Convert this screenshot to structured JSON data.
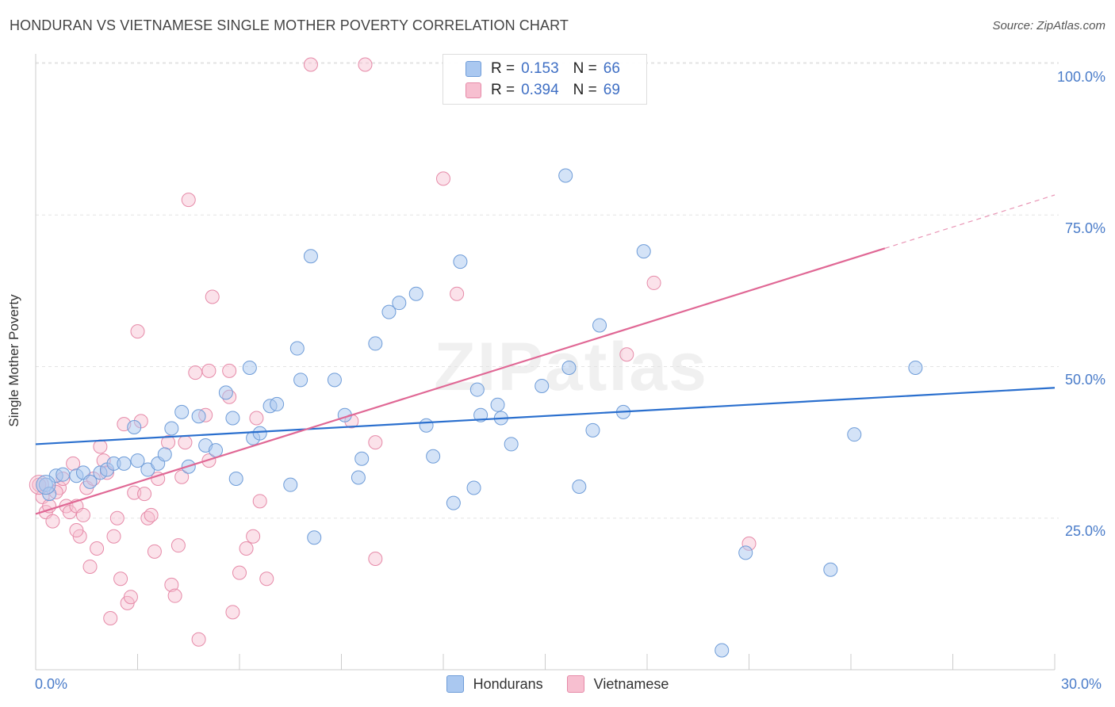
{
  "title": "HONDURAN VS VIETNAMESE SINGLE MOTHER POVERTY CORRELATION CHART",
  "source": "Source: ZipAtlas.com",
  "watermark": "ZIPatlas",
  "colors": {
    "hondurans_fill": "#aac8f0",
    "hondurans_stroke": "#6e9cd8",
    "hondurans_line": "#2a6fce",
    "vietnamese_fill": "#f7bfd0",
    "vietnamese_stroke": "#e68aa8",
    "vietnamese_line": "#e06895",
    "tick_text": "#4a7cc9",
    "grid": "#e3e3e3"
  },
  "legend_top": {
    "rows": [
      {
        "r_label": "R =",
        "r_value": "0.153",
        "n_label": "N =",
        "n_value": "66"
      },
      {
        "r_label": "R =",
        "r_value": "0.394",
        "n_label": "N =",
        "n_value": "69"
      }
    ]
  },
  "legend_bottom": [
    "Hondurans",
    "Vietnamese"
  ],
  "chart_data": {
    "type": "scatter",
    "title": "HONDURAN VS VIETNAMESE SINGLE MOTHER POVERTY CORRELATION CHART",
    "xlabel": "",
    "ylabel": "Single Mother Poverty",
    "xlim": [
      0,
      30
    ],
    "ylim": [
      0,
      103
    ],
    "x_tick_labels": [
      "0.0%",
      "30.0%"
    ],
    "y_ticks": [
      25,
      50,
      75,
      100
    ],
    "y_tick_labels": [
      "25.0%",
      "50.0%",
      "75.0%",
      "100.0%"
    ],
    "grid": true,
    "legend_position": "top-center",
    "series": [
      {
        "name": "Hondurans",
        "r": 0.153,
        "n": 66,
        "trend": {
          "x0": 0,
          "y0": 37.2,
          "x1": 30,
          "y1": 46.5
        },
        "points": [
          [
            0.3,
            30.5
          ],
          [
            0.4,
            29.0
          ],
          [
            0.6,
            32.0
          ],
          [
            0.8,
            32.2
          ],
          [
            1.2,
            32.0
          ],
          [
            1.4,
            32.5
          ],
          [
            1.6,
            31.0
          ],
          [
            1.9,
            32.5
          ],
          [
            2.1,
            33.0
          ],
          [
            2.3,
            34.0
          ],
          [
            2.6,
            34.0
          ],
          [
            2.9,
            40.0
          ],
          [
            3.0,
            34.5
          ],
          [
            3.3,
            33.0
          ],
          [
            3.6,
            34.0
          ],
          [
            3.8,
            35.5
          ],
          [
            4.0,
            39.8
          ],
          [
            4.3,
            42.5
          ],
          [
            4.5,
            33.5
          ],
          [
            4.8,
            41.8
          ],
          [
            5.0,
            37.0
          ],
          [
            5.3,
            36.2
          ],
          [
            5.6,
            45.7
          ],
          [
            5.8,
            41.5
          ],
          [
            5.9,
            31.5
          ],
          [
            6.3,
            49.8
          ],
          [
            6.4,
            38.2
          ],
          [
            6.6,
            39.0
          ],
          [
            6.9,
            43.5
          ],
          [
            7.1,
            43.8
          ],
          [
            7.5,
            30.5
          ],
          [
            7.7,
            53.0
          ],
          [
            7.8,
            47.8
          ],
          [
            8.1,
            68.2
          ],
          [
            8.2,
            21.8
          ],
          [
            8.8,
            47.8
          ],
          [
            9.1,
            42.0
          ],
          [
            9.5,
            31.7
          ],
          [
            9.6,
            34.8
          ],
          [
            10.0,
            53.8
          ],
          [
            10.4,
            59.0
          ],
          [
            10.7,
            60.5
          ],
          [
            11.2,
            62.0
          ],
          [
            11.5,
            40.3
          ],
          [
            11.7,
            35.2
          ],
          [
            12.3,
            27.5
          ],
          [
            12.5,
            67.3
          ],
          [
            12.9,
            30.0
          ],
          [
            13.0,
            46.2
          ],
          [
            13.1,
            42.0
          ],
          [
            13.6,
            43.7
          ],
          [
            13.7,
            41.5
          ],
          [
            14.0,
            37.2
          ],
          [
            14.9,
            46.8
          ],
          [
            15.6,
            81.5
          ],
          [
            15.7,
            49.8
          ],
          [
            16.0,
            30.2
          ],
          [
            16.4,
            39.5
          ],
          [
            16.6,
            56.8
          ],
          [
            17.3,
            42.5
          ],
          [
            17.9,
            69.0
          ],
          [
            20.9,
            19.3
          ],
          [
            23.4,
            16.5
          ],
          [
            24.1,
            38.8
          ],
          [
            25.9,
            49.8
          ],
          [
            20.2,
            3.2
          ]
        ]
      },
      {
        "name": "Vietnamese",
        "r": 0.394,
        "n": 69,
        "trend": {
          "x0": 0,
          "y0": 25.7,
          "x1": 25.0,
          "y1": 69.5,
          "dash_to_x": 30,
          "dash_to_y": 78.3
        },
        "points": [
          [
            0.1,
            30.5
          ],
          [
            0.2,
            28.5
          ],
          [
            0.3,
            26.0
          ],
          [
            0.4,
            27.0
          ],
          [
            0.5,
            24.5
          ],
          [
            0.7,
            30.0
          ],
          [
            0.8,
            31.5
          ],
          [
            0.9,
            27.0
          ],
          [
            1.0,
            26.0
          ],
          [
            1.1,
            34.0
          ],
          [
            1.2,
            27.0
          ],
          [
            1.3,
            22.0
          ],
          [
            1.4,
            25.5
          ],
          [
            1.5,
            30.0
          ],
          [
            1.6,
            17.0
          ],
          [
            1.7,
            31.5
          ],
          [
            1.8,
            20.0
          ],
          [
            1.9,
            36.8
          ],
          [
            2.0,
            34.5
          ],
          [
            2.1,
            32.5
          ],
          [
            2.2,
            8.5
          ],
          [
            2.3,
            22.0
          ],
          [
            2.4,
            25.0
          ],
          [
            2.5,
            15.0
          ],
          [
            2.6,
            40.5
          ],
          [
            2.7,
            11.0
          ],
          [
            2.8,
            12.0
          ],
          [
            2.9,
            29.2
          ],
          [
            3.0,
            55.8
          ],
          [
            3.1,
            41.0
          ],
          [
            3.2,
            29.0
          ],
          [
            3.3,
            25.0
          ],
          [
            3.4,
            25.5
          ],
          [
            3.5,
            19.5
          ],
          [
            3.6,
            31.5
          ],
          [
            3.9,
            37.5
          ],
          [
            4.0,
            14.0
          ],
          [
            4.1,
            12.2
          ],
          [
            4.2,
            20.5
          ],
          [
            4.3,
            31.8
          ],
          [
            4.4,
            37.5
          ],
          [
            4.5,
            77.5
          ],
          [
            4.7,
            49.0
          ],
          [
            4.8,
            5.0
          ],
          [
            5.0,
            42.0
          ],
          [
            5.1,
            49.3
          ],
          [
            5.1,
            34.5
          ],
          [
            5.2,
            61.5
          ],
          [
            5.7,
            49.3
          ],
          [
            5.7,
            45.0
          ],
          [
            5.8,
            9.5
          ],
          [
            6.0,
            16.0
          ],
          [
            6.2,
            20.0
          ],
          [
            6.4,
            22.0
          ],
          [
            6.5,
            41.5
          ],
          [
            6.6,
            27.8
          ],
          [
            6.8,
            15.0
          ],
          [
            8.1,
            99.8
          ],
          [
            9.3,
            41.0
          ],
          [
            9.7,
            99.8
          ],
          [
            10.0,
            37.5
          ],
          [
            10.0,
            18.3
          ],
          [
            12.0,
            81.0
          ],
          [
            12.4,
            62.0
          ],
          [
            17.4,
            52.0
          ],
          [
            18.2,
            63.8
          ],
          [
            21.0,
            20.8
          ],
          [
            0.6,
            29.3
          ],
          [
            1.2,
            23.0
          ]
        ]
      }
    ]
  }
}
